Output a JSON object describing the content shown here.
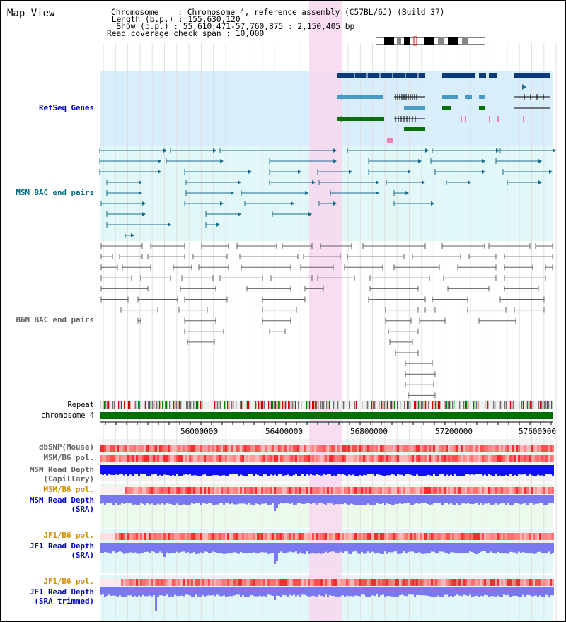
{
  "page": {
    "title": "Map View"
  },
  "info": {
    "line1": "Chromosome    : Chromosome 4, reference assembly (C57BL/6J) (Build 37)",
    "line2": " Length (b.p.) : 155,630,120",
    "line3": "  Show (b.p.) : 55,610,471-57,760,875 : 2,150,405 bp",
    "line4": "Read coverage check span : 10,000"
  },
  "tracks": {
    "refseq": "RefSeq Genes",
    "msm_bac": "MSM BAC end pairs",
    "b6n_bac": "B6N BAC end pairs",
    "repeat": "Repeat",
    "chromosome": "chromosome 4",
    "dbsnp": "dbSNP(Mouse)",
    "msm_b6_pol_1": "MSM/B6 pol.",
    "msm_depth_cap_1": "MSM Read Depth",
    "msm_depth_cap_2": "(Capillary)",
    "msm_b6_pol_2": "MSM/B6 pol.",
    "msm_depth_sra_1": "MSM Read Depth",
    "msm_depth_sra_2": "(SRA)",
    "jf1_b6_pol_1": "JF1/B6 pol.",
    "jf1_depth_sra_1": "JF1 Read Depth",
    "jf1_depth_sra_2": "(SRA)",
    "jf1_b6_pol_2": "JF1/B6 pol.",
    "jf1_depth_trim_1": "JF1 Read Depth",
    "jf1_depth_trim_2": "(SRA trimmed)"
  },
  "axis": {
    "ticks": [
      "56000000",
      "56400000",
      "56800000",
      "57200000",
      "57600000"
    ]
  },
  "colors": {
    "highlight": "#f8d8f0",
    "refseq_bg": "#d8eefa",
    "msm_bg": "#e2f8f8",
    "pol_bg": "#ffeaea",
    "green_bg": "#ecfaec",
    "navy": "#0a3a7a",
    "teal": "#1a6e8e",
    "lightblue": "#4a9bc4",
    "green": "#0a6e0a",
    "chrom_green": "#007000",
    "gray": "#606060",
    "depth_blue": "#1010f0",
    "depth_violet": "#7878f0",
    "label_blue": "#0000c0",
    "label_teal": "#006e80",
    "label_orange": "#d09000"
  }
}
